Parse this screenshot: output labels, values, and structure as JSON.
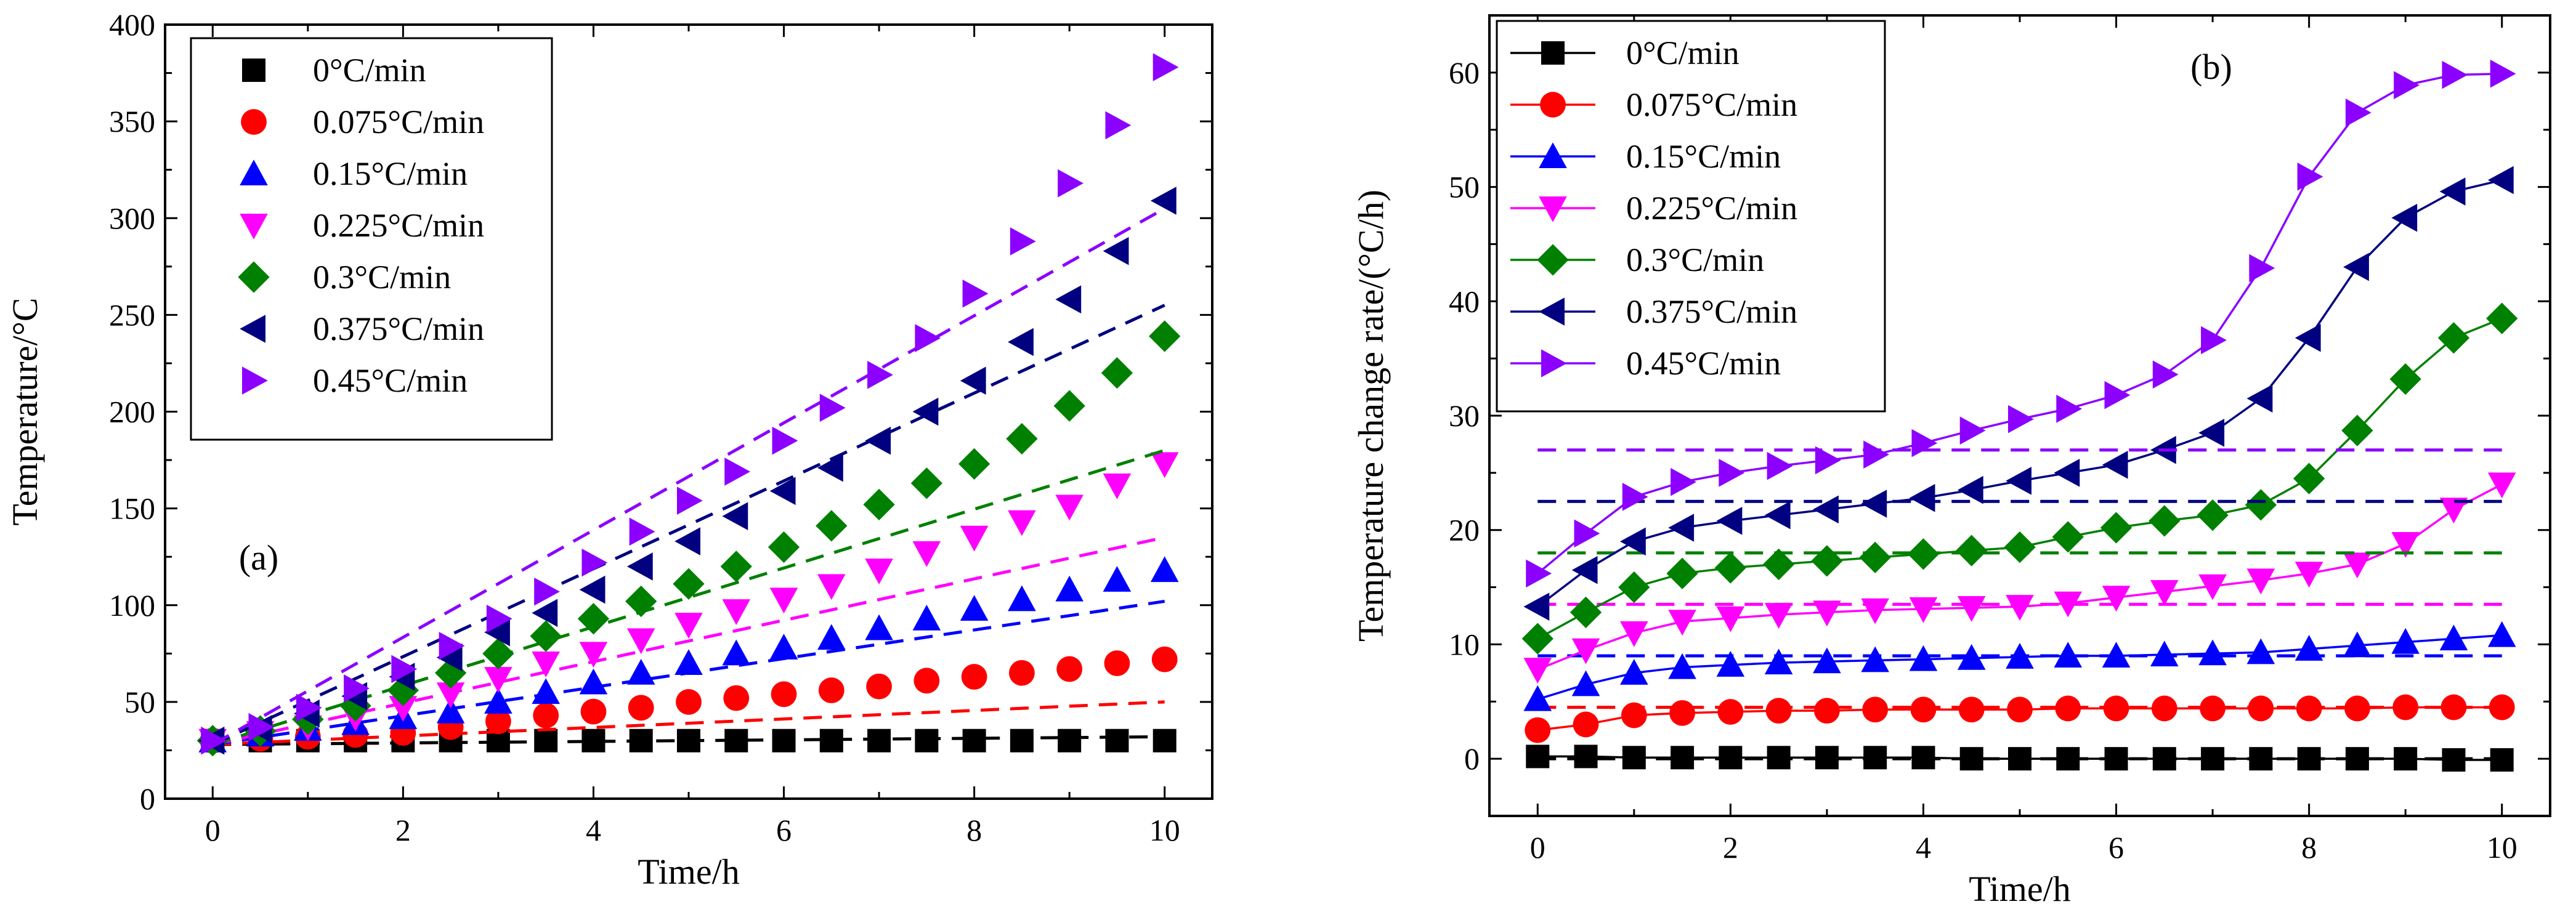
{
  "chart_data": [
    {
      "type": "scatter",
      "tag": "(a)",
      "xlabel": "Time/h",
      "ylabel": "Temperature/°C",
      "xlim": [
        -0.5,
        10.5
      ],
      "ylim": [
        0,
        400
      ],
      "xticks": [
        "0",
        "2",
        "4",
        "6",
        "8",
        "10"
      ],
      "yticks": [
        "0",
        "50",
        "100",
        "150",
        "200",
        "250",
        "300",
        "350",
        "400"
      ],
      "legend_position": "top-left",
      "fit_style": "dashed linear fit per series",
      "x": [
        0,
        0.5,
        1,
        1.5,
        2,
        2.5,
        3,
        3.5,
        4,
        4.5,
        5,
        5.5,
        6,
        6.5,
        7,
        7.5,
        8,
        8.5,
        9,
        9.5,
        10
      ],
      "series": [
        {
          "name": "0°C/min",
          "color": "#000000",
          "marker": "square",
          "values": [
            30,
            30,
            30,
            30,
            30,
            30,
            30,
            30,
            30,
            30,
            30,
            30,
            30,
            30,
            30,
            30,
            30,
            30,
            30,
            30,
            30
          ],
          "fit": [
            [
              0,
              28
            ],
            [
              10,
              32
            ]
          ]
        },
        {
          "name": "0.075°C/min",
          "color": "#ff0000",
          "marker": "circle",
          "values": [
            30,
            31,
            32,
            33,
            34,
            37,
            40,
            43,
            45,
            47,
            50,
            52,
            54,
            56,
            58,
            61,
            63,
            65,
            67,
            70,
            72
          ],
          "fit": [
            [
              0,
              28
            ],
            [
              10,
              50
            ]
          ]
        },
        {
          "name": "0.15°C/min",
          "color": "#0000ff",
          "marker": "triangle-up",
          "values": [
            30,
            33,
            36,
            39,
            42,
            45,
            50,
            55,
            60,
            65,
            70,
            75,
            78,
            83,
            88,
            93,
            98,
            103,
            108,
            113,
            118
          ],
          "fit": [
            [
              0,
              28
            ],
            [
              10,
              102
            ]
          ]
        },
        {
          "name": "0.225°C/min",
          "color": "#ff00ff",
          "marker": "triangle-down",
          "values": [
            30,
            34,
            37,
            42,
            47,
            54,
            62,
            70,
            75,
            82,
            90,
            97,
            103,
            110,
            118,
            127,
            135,
            143,
            151,
            162,
            173
          ],
          "fit": [
            [
              0,
              28
            ],
            [
              10,
              135
            ]
          ]
        },
        {
          "name": "0.3°C/min",
          "color": "#008000",
          "marker": "diamond",
          "values": [
            30,
            35,
            41,
            48,
            56,
            65,
            75,
            84,
            93,
            102,
            111,
            120,
            130,
            141,
            152,
            163,
            173,
            186,
            203,
            220,
            239
          ],
          "fit": [
            [
              0,
              28
            ],
            [
              10,
              180
            ]
          ]
        },
        {
          "name": "0.375°C/min",
          "color": "#000080",
          "marker": "triangle-left",
          "values": [
            30,
            36,
            44,
            53,
            63,
            73,
            86,
            96,
            108,
            120,
            133,
            146,
            159,
            171,
            185,
            200,
            216,
            236,
            258,
            283,
            309
          ],
          "fit": [
            [
              0,
              28
            ],
            [
              10,
              255
            ]
          ]
        },
        {
          "name": "0.45°C/min",
          "color": "#8b00ff",
          "marker": "triangle-right",
          "values": [
            30,
            37,
            47,
            57,
            67,
            79,
            93,
            107,
            122,
            138,
            154,
            169,
            185,
            202,
            219,
            238,
            261,
            288,
            318,
            348,
            378
          ],
          "fit": [
            [
              0,
              28
            ],
            [
              10,
              305
            ]
          ]
        }
      ]
    },
    {
      "type": "line",
      "tag": "(b)",
      "xlabel": "Time/h",
      "ylabel": "Temperature change rate/(°C/h)",
      "xlim": [
        -0.5,
        10.5
      ],
      "ylim": [
        -5,
        65
      ],
      "xticks": [
        "0",
        "2",
        "4",
        "6",
        "8",
        "10"
      ],
      "yticks": [
        "0",
        "10",
        "20",
        "30",
        "40",
        "50",
        "60"
      ],
      "legend_position": "top-left",
      "reference_style": "dashed horizontal line at nominal rate",
      "x": [
        0,
        0.5,
        1,
        1.5,
        2,
        2.5,
        3,
        3.5,
        4,
        4.5,
        5,
        5.5,
        6,
        6.5,
        7,
        7.5,
        8,
        8.5,
        9,
        9.5,
        10
      ],
      "series": [
        {
          "name": "0°C/min",
          "color": "#000000",
          "marker": "square",
          "values": [
            0.2,
            0.2,
            0.1,
            0.1,
            0.1,
            0.1,
            0.1,
            0.1,
            0.1,
            0.0,
            0.0,
            0.0,
            0.0,
            0.0,
            0.0,
            0.0,
            0.0,
            0.0,
            0.0,
            -0.1,
            -0.1
          ],
          "reference": 0
        },
        {
          "name": "0.075°C/min",
          "color": "#ff0000",
          "marker": "circle",
          "values": [
            2.5,
            3.0,
            3.8,
            4.0,
            4.1,
            4.2,
            4.2,
            4.3,
            4.3,
            4.3,
            4.3,
            4.4,
            4.4,
            4.4,
            4.4,
            4.4,
            4.4,
            4.4,
            4.5,
            4.5,
            4.5
          ],
          "reference": 4.5
        },
        {
          "name": "0.15°C/min",
          "color": "#0000ff",
          "marker": "triangle-up",
          "values": [
            5.2,
            6.5,
            7.5,
            8.0,
            8.2,
            8.4,
            8.5,
            8.6,
            8.7,
            8.8,
            8.9,
            9.0,
            9.0,
            9.1,
            9.2,
            9.3,
            9.6,
            9.9,
            10.2,
            10.5,
            10.8
          ],
          "reference": 9
        },
        {
          "name": "0.225°C/min",
          "color": "#ff00ff",
          "marker": "triangle-down",
          "values": [
            7.8,
            9.5,
            11.0,
            12.0,
            12.3,
            12.6,
            12.8,
            13.0,
            13.1,
            13.2,
            13.3,
            13.6,
            14.1,
            14.6,
            15.1,
            15.6,
            16.2,
            17.0,
            18.8,
            21.8,
            24.0
          ],
          "reference": 13.5
        },
        {
          "name": "0.3°C/min",
          "color": "#008000",
          "marker": "diamond",
          "values": [
            10.5,
            12.8,
            15.0,
            16.2,
            16.7,
            17.0,
            17.3,
            17.6,
            17.9,
            18.2,
            18.5,
            19.4,
            20.2,
            20.8,
            21.3,
            22.2,
            24.5,
            28.7,
            33.2,
            36.8,
            38.5
          ],
          "reference": 18
        },
        {
          "name": "0.375°C/min",
          "color": "#000080",
          "marker": "triangle-left",
          "values": [
            13.3,
            16.5,
            19.0,
            20.2,
            20.8,
            21.3,
            21.8,
            22.3,
            22.8,
            23.5,
            24.3,
            25.0,
            25.7,
            27.0,
            28.5,
            31.5,
            36.8,
            43.0,
            47.3,
            49.6,
            50.6
          ],
          "reference": 22.5
        },
        {
          "name": "0.45°C/min",
          "color": "#8b00ff",
          "marker": "triangle-right",
          "values": [
            16.2,
            19.7,
            22.9,
            24.2,
            25.0,
            25.6,
            26.1,
            26.6,
            27.6,
            28.7,
            29.7,
            30.6,
            31.8,
            33.6,
            36.6,
            42.9,
            50.9,
            56.5,
            58.9,
            59.8,
            59.9
          ],
          "reference": 27
        }
      ]
    }
  ]
}
